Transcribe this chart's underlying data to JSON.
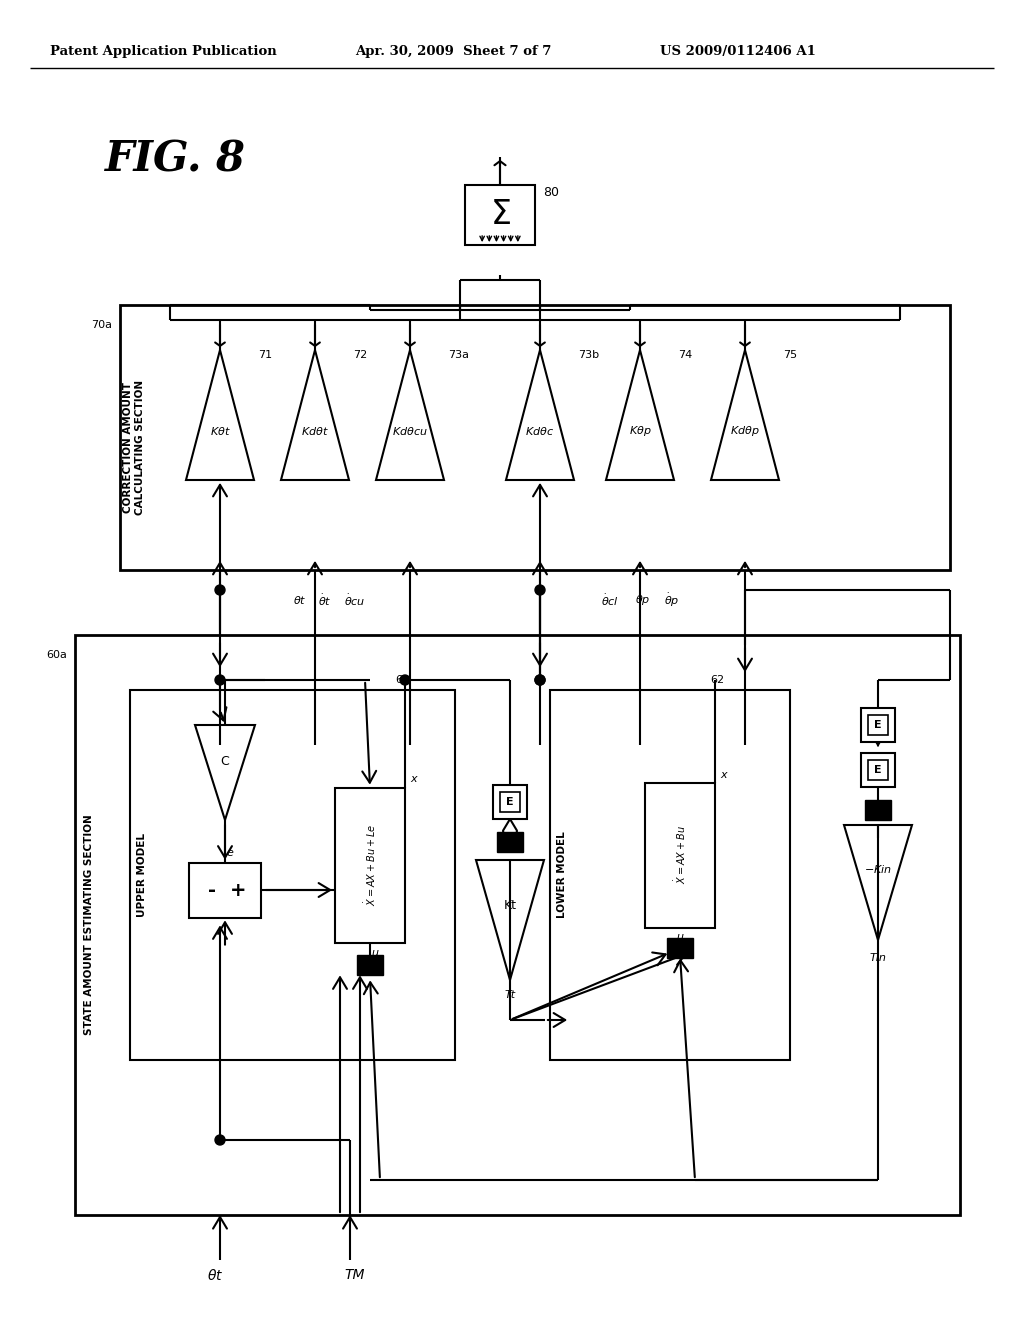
{
  "title_header": "Patent Application Publication",
  "date_header": "Apr. 30, 2009  Sheet 7 of 7",
  "patent_number": "US 2009/0112406 A1",
  "fig_label": "FIG. 8",
  "background_color": "#ffffff"
}
